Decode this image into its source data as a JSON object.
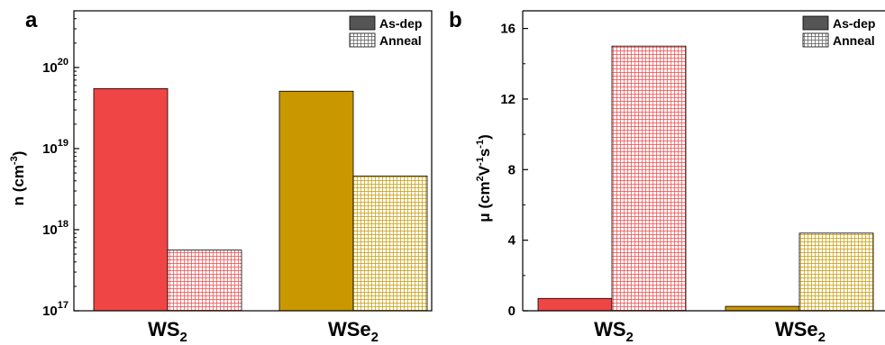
{
  "colors": {
    "ws2": "#f04545",
    "wse2": "#c99800",
    "legend": "#555555"
  },
  "legend": [
    "As-dep",
    "Anneal"
  ],
  "panels": [
    {
      "label": "a",
      "ylabel_main": "n (cm",
      "ylabel_sup": "-3",
      "ylabel_end": ")"
    },
    {
      "label": "b",
      "ylabel_main": "μ (cm",
      "ylabel_sup1": "2",
      "ylabel_mid1": "V",
      "ylabel_sup2": "-1",
      "ylabel_mid2": "s",
      "ylabel_sup3": "-1",
      "ylabel_end": ")"
    }
  ],
  "chart_data": [
    {
      "type": "bar",
      "panel": "a",
      "categories": [
        "WS2",
        "WSe2"
      ],
      "series": [
        {
          "name": "As-dep",
          "values": [
            5.5e+19,
            5.1e+19
          ]
        },
        {
          "name": "Anneal",
          "values": [
            5.6e+17,
            4.6e+18
          ]
        }
      ],
      "yscale": "log",
      "ylim": [
        1e+17,
        5e+20
      ],
      "yticks": [
        1e+17,
        1e+18,
        1e+19,
        1e+20
      ],
      "ytick_labels": [
        [
          "10",
          "17"
        ],
        [
          "10",
          "18"
        ],
        [
          "10",
          "19"
        ],
        [
          "10",
          "20"
        ]
      ],
      "ylabel": "n (cm-3)",
      "legend_position": "top-right"
    },
    {
      "type": "bar",
      "panel": "b",
      "categories": [
        "WS2",
        "WSe2"
      ],
      "series": [
        {
          "name": "As-dep",
          "values": [
            0.7,
            0.25
          ]
        },
        {
          "name": "Anneal",
          "values": [
            15.0,
            4.4
          ]
        }
      ],
      "yscale": "linear",
      "ylim": [
        0,
        17
      ],
      "yticks": [
        0,
        4,
        8,
        12,
        16
      ],
      "ylabel": "μ (cm2V-1s-1)",
      "legend_position": "top-right"
    }
  ]
}
